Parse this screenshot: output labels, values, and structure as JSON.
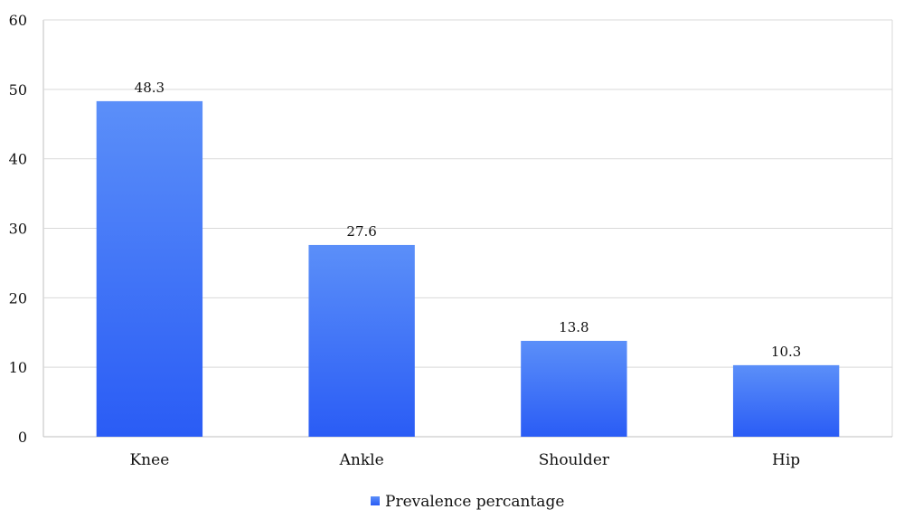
{
  "chart_data": {
    "type": "bar",
    "categories": [
      "Knee",
      "Ankle",
      "Shoulder",
      "Hip"
    ],
    "series": [
      {
        "name": "Prevalence percantage",
        "values": [
          48.3,
          27.6,
          13.8,
          10.3
        ]
      }
    ],
    "data_labels": [
      "48.3",
      "27.6",
      "13.8",
      "10.3"
    ],
    "yticks": [
      "0",
      "10",
      "20",
      "30",
      "40",
      "50",
      "60"
    ],
    "ylim": [
      0,
      60
    ],
    "grid": true,
    "legend_position": "bottom-center",
    "colors": {
      "bar_top": "#5b8ff9",
      "bar_bottom": "#2a5cf5",
      "grid": "#d9d9d9",
      "axis": "#bfbfbf"
    }
  }
}
